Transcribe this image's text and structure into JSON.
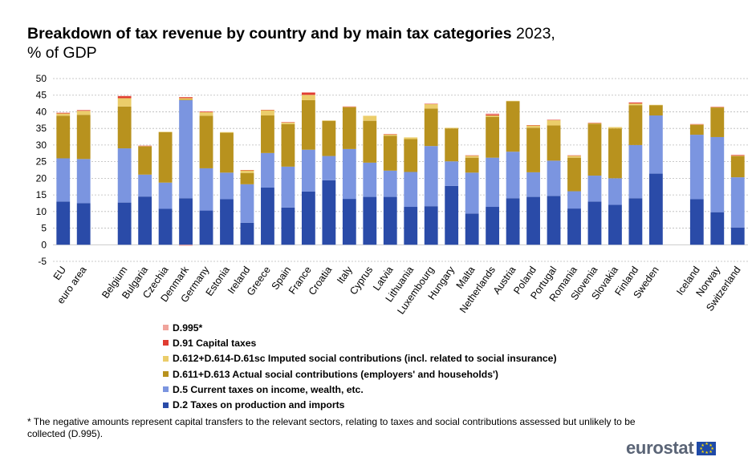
{
  "chart_data": {
    "type": "stacked-bar",
    "title": "Breakdown of tax revenue by country and by main tax categories",
    "title_year": "2023,",
    "subtitle": "% of GDP",
    "ylim": [
      -5,
      50
    ],
    "yticks": [
      -5,
      0,
      5,
      10,
      15,
      20,
      25,
      30,
      35,
      40,
      45,
      50
    ],
    "grid": true,
    "groups": [
      [
        "EU",
        "euro area"
      ],
      [
        "Belgium",
        "Bulgaria",
        "Czechia",
        "Denmark",
        "Germany",
        "Estonia",
        "Ireland",
        "Greece",
        "Spain",
        "France",
        "Croatia",
        "Italy",
        "Cyprus",
        "Latvia",
        "Lithuania",
        "Luxembourg",
        "Hungary",
        "Malta",
        "Netherlands",
        "Austria",
        "Poland",
        "Portugal",
        "Romania",
        "Slovenia",
        "Slovakia",
        "Finland",
        "Sweden"
      ],
      [
        "Iceland",
        "Norway",
        "Switzerland"
      ]
    ],
    "categories": [
      "EU",
      "euro area",
      "Belgium",
      "Bulgaria",
      "Czechia",
      "Denmark",
      "Germany",
      "Estonia",
      "Ireland",
      "Greece",
      "Spain",
      "France",
      "Croatia",
      "Italy",
      "Cyprus",
      "Latvia",
      "Lithuania",
      "Luxembourg",
      "Hungary",
      "Malta",
      "Netherlands",
      "Austria",
      "Poland",
      "Portugal",
      "Romania",
      "Slovenia",
      "Slovakia",
      "Finland",
      "Sweden",
      "Iceland",
      "Norway",
      "Switzerland"
    ],
    "series": [
      {
        "name": "D.2 Taxes on production and imports",
        "color": "#2a4ba8",
        "values": [
          13.0,
          12.5,
          12.7,
          14.5,
          10.8,
          14.0,
          10.3,
          13.7,
          6.6,
          17.2,
          11.2,
          16.0,
          19.4,
          13.8,
          14.4,
          14.4,
          11.4,
          11.6,
          17.7,
          9.4,
          11.4,
          14.0,
          14.4,
          14.7,
          10.9,
          13.0,
          12.0,
          14.0,
          21.4,
          13.7,
          9.8,
          5.2
        ]
      },
      {
        "name": "D.5 Current taxes on income, wealth, etc.",
        "color": "#7b95e0",
        "values": [
          13.0,
          13.3,
          16.3,
          6.6,
          7.9,
          29.5,
          12.7,
          8.0,
          11.6,
          10.4,
          12.3,
          12.6,
          7.3,
          15.0,
          10.3,
          7.9,
          10.5,
          18.1,
          7.4,
          12.3,
          14.8,
          14.0,
          7.4,
          10.6,
          5.2,
          7.8,
          8.0,
          16.0,
          17.5,
          19.4,
          22.6,
          15.1
        ]
      },
      {
        "name": "D.611+D.613 Actual social contributions (employers' and households')",
        "color": "#b8921e",
        "values": [
          12.8,
          13.3,
          12.6,
          8.5,
          15.2,
          0.2,
          15.8,
          12.0,
          3.4,
          11.3,
          12.8,
          14.9,
          10.6,
          12.6,
          12.6,
          10.5,
          9.9,
          11.3,
          9.9,
          4.5,
          12.3,
          15.2,
          13.4,
          10.6,
          10.1,
          15.6,
          15.0,
          12.0,
          3.1,
          3.0,
          8.9,
          6.4
        ]
      },
      {
        "name": "D.612+D.614-D.61sc Imputed social contributions (incl. related to social insurance)",
        "color": "#ebcd6a",
        "values": [
          0.7,
          1.2,
          2.5,
          0.1,
          0.1,
          0.4,
          1.1,
          0.2,
          0.8,
          1.6,
          0.5,
          1.6,
          0.1,
          0.1,
          1.5,
          0.4,
          0.5,
          1.3,
          0.2,
          0.6,
          0.4,
          0.1,
          0.7,
          1.6,
          0.6,
          0.2,
          0.4,
          0.5,
          0.1,
          0.1,
          0.1,
          0.1
        ]
      },
      {
        "name": "D.91 Capital taxes",
        "color": "#e03c31",
        "values": [
          0.2,
          0.2,
          0.6,
          0.1,
          0.0,
          0.3,
          0.2,
          0.0,
          0.1,
          0.1,
          0.1,
          0.7,
          0.0,
          0.1,
          0.0,
          0.1,
          0.0,
          0.1,
          0.0,
          0.1,
          0.3,
          0.0,
          0.1,
          0.1,
          0.1,
          0.1,
          0.0,
          0.3,
          0.0,
          0.1,
          0.1,
          0.2
        ]
      },
      {
        "name": "D.995*",
        "color": "#f0a49c",
        "values": [
          0.0,
          0.0,
          0.1,
          0.0,
          0.0,
          -0.3,
          0.0,
          0.0,
          0.0,
          0.0,
          0.0,
          0.0,
          0.0,
          0.0,
          0.0,
          0.0,
          0.0,
          0.0,
          0.0,
          0.0,
          0.3,
          0.0,
          0.0,
          0.0,
          0.0,
          0.0,
          0.0,
          0.0,
          0.0,
          0.0,
          0.0,
          0.0
        ]
      }
    ]
  },
  "legend": [
    {
      "label": "D.995*",
      "color": "#f0a49c"
    },
    {
      "label": "D.91 Capital taxes",
      "color": "#e03c31"
    },
    {
      "label": "D.612+D.614-D.61sc Imputed social contributions (incl. related to social insurance)",
      "color": "#ebcd6a"
    },
    {
      "label": "D.611+D.613 Actual social contributions (employers' and households')",
      "color": "#b8921e"
    },
    {
      "label": "D.5 Current taxes on income, wealth, etc.",
      "color": "#7b95e0"
    },
    {
      "label": "D.2 Taxes on production and imports",
      "color": "#2a4ba8"
    }
  ],
  "footnote": "* The negative amounts represent capital transfers to the relevant sectors, relating to taxes and social contributions assessed but unlikely to be collected (D.995).",
  "brand": "eurostat"
}
